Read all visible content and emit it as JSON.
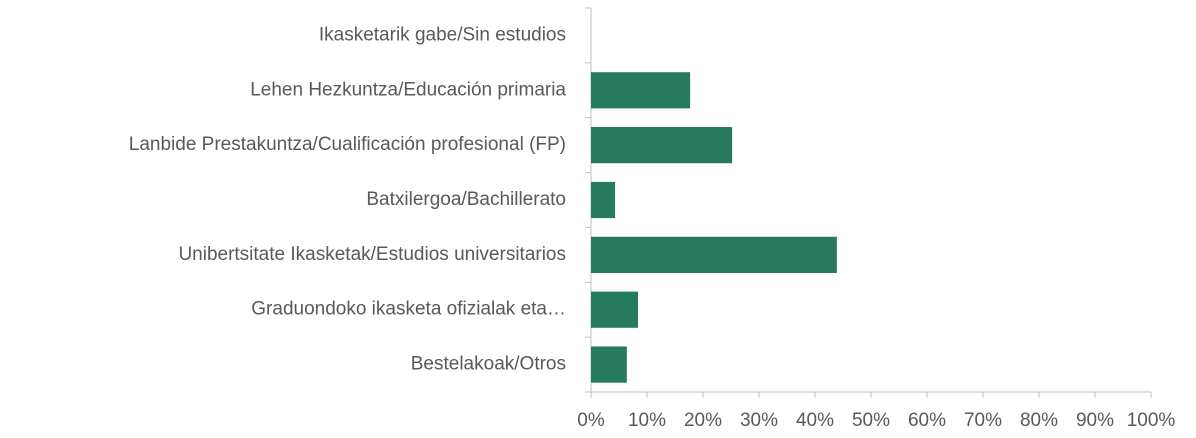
{
  "chart_data": {
    "type": "hbar",
    "categories": [
      "Ikasketarik gabe/Sin estudios",
      "Lehen Hezkuntza/Educación primaria",
      "Lanbide Prestakuntza/Cualificación profesional (FP)",
      "Batxilergoa/Bachillerato",
      "Unibertsitate Ikasketak/Estudios universitarios",
      "Graduondoko ikasketa ofizialak eta…",
      "Bestelakoak/Otros"
    ],
    "values": [
      0,
      17.7,
      25.2,
      4.3,
      43.9,
      8.4,
      6.4
    ],
    "color": "#267a5e",
    "xlim": [
      0,
      100
    ],
    "xticks": [
      {
        "value": 0,
        "label": "0%"
      },
      {
        "value": 10,
        "label": "10%"
      },
      {
        "value": 20,
        "label": "20%"
      },
      {
        "value": 30,
        "label": "30%"
      },
      {
        "value": 40,
        "label": "40%"
      },
      {
        "value": 50,
        "label": "50%"
      },
      {
        "value": 60,
        "label": "60%"
      },
      {
        "value": 70,
        "label": "70%"
      },
      {
        "value": 80,
        "label": "80%"
      },
      {
        "value": 90,
        "label": "90%"
      },
      {
        "value": 100,
        "label": "100%"
      }
    ],
    "grid": false
  }
}
